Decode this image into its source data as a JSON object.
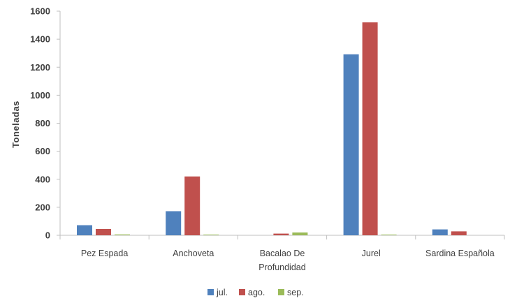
{
  "chart_data": {
    "type": "bar",
    "categories": [
      [
        "Pez Espada"
      ],
      [
        "Anchoveta"
      ],
      [
        "Bacalao De",
        "Profundidad"
      ],
      [
        "Jurel"
      ],
      [
        "Sardina Española"
      ]
    ],
    "series": [
      {
        "name": "jul.",
        "color": "#4F81BD",
        "values": [
          72,
          172,
          0,
          1292,
          42
        ]
      },
      {
        "name": "ago.",
        "color": "#C0504D",
        "values": [
          45,
          420,
          12,
          1520,
          28
        ]
      },
      {
        "name": "sep.",
        "color": "#9BBB59",
        "values": [
          6,
          5,
          20,
          5,
          0
        ]
      }
    ],
    "ylabel": "Toneladas",
    "xlabel": "",
    "ylim": [
      0,
      1600
    ],
    "yticks": [
      0,
      200,
      400,
      600,
      800,
      1000,
      1200,
      1400,
      1600
    ],
    "grid": false,
    "legend": "bottom-center"
  }
}
